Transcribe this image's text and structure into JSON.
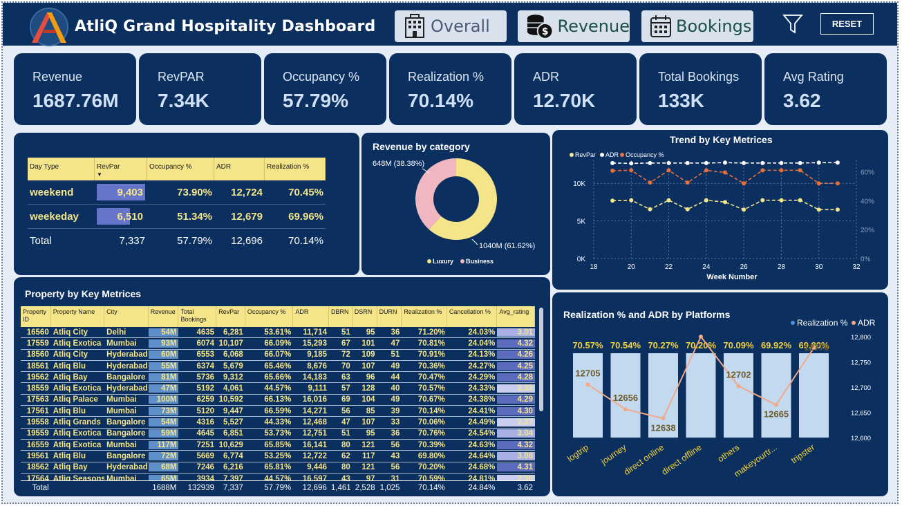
{
  "header": {
    "title": "AtliQ Grand Hospitality Dashboard",
    "nav": [
      {
        "label": "Overall",
        "color": "#4a5b7a",
        "icon": "hotel-icon"
      },
      {
        "label": "Revenue",
        "color": "#1c4f4a",
        "icon": "coins-icon"
      },
      {
        "label": "Bookings",
        "color": "#1c4f4a",
        "icon": "calendar-icon"
      }
    ],
    "reset_label": "RESET"
  },
  "kpis": [
    {
      "label": "Revenue",
      "value": "1687.76M"
    },
    {
      "label": "RevPAR",
      "value": "7.34K"
    },
    {
      "label": "Occupancy %",
      "value": "57.79%"
    },
    {
      "label": "Realization %",
      "value": "70.14%"
    },
    {
      "label": "ADR",
      "value": "12.70K"
    },
    {
      "label": "Total Bookings",
      "value": "133K"
    },
    {
      "label": "Avg Rating",
      "value": "3.62"
    }
  ],
  "day_type_table": {
    "headers": [
      "Day Type",
      "RevPar",
      "Occupancy %",
      "ADR",
      "Realization %"
    ],
    "rows": [
      {
        "day_type": "weekend",
        "revpar": "9,403",
        "revpar_value": 9403,
        "occupancy": "73.90%",
        "adr": "12,724",
        "realization": "70.45%"
      },
      {
        "day_type": "weekeday",
        "revpar": "6,510",
        "revpar_value": 6510,
        "occupancy": "51.34%",
        "adr": "12,679",
        "realization": "69.96%"
      }
    ],
    "total": {
      "day_type": "Total",
      "revpar": "7,337",
      "occupancy": "57.79%",
      "adr": "12,696",
      "realization": "70.14%"
    }
  },
  "revenue_by_category": {
    "title": "Revenue by category",
    "luxury_label": "1040M (61.62%)",
    "business_label": "648M (38.38%)",
    "legend": [
      "Luxury",
      "Business"
    ],
    "colors": {
      "Luxury": "#f4e58a",
      "Business": "#f0b7c0"
    }
  },
  "trend_chart": {
    "title": "Trend by Key Metrices",
    "xlabel": "Week Number",
    "legend": [
      "RevPar",
      "ADR",
      "Occupancy %"
    ],
    "colors": {
      "RevPar": "#f4e58a",
      "ADR": "#ffffff",
      "Occupancy %": "#e8703a"
    },
    "x_ticks": [
      "18",
      "20",
      "22",
      "24",
      "26",
      "28",
      "30",
      "32"
    ],
    "y_left_ticks": [
      "0K",
      "5K",
      "10K"
    ],
    "y_right_ticks": [
      "0%",
      "20%",
      "40%",
      "60%"
    ]
  },
  "property_table": {
    "title": "Property by Key Metrices",
    "headers": [
      "Property ID",
      "Property Name",
      "City",
      "Revenue",
      "Total Bookings",
      "RevPar",
      "Occupancy %",
      "ADR",
      "DBRN",
      "DSRN",
      "DURN",
      "Realization %",
      "Cancellation %",
      "Avg_rating"
    ],
    "rows": [
      [
        "16560",
        "Atliq City",
        "Delhi",
        "54M",
        "4635",
        "6,281",
        "53.61%",
        "11,714",
        "51",
        "95",
        "36",
        "71.20%",
        "24.03%",
        "3.01"
      ],
      [
        "17559",
        "Atliq Exotica",
        "Mumbai",
        "93M",
        "6074",
        "10,107",
        "66.09%",
        "15,293",
        "67",
        "101",
        "47",
        "70.81%",
        "24.04%",
        "4.32"
      ],
      [
        "18560",
        "Atliq City",
        "Hyderabad",
        "60M",
        "6553",
        "6,068",
        "66.07%",
        "9,185",
        "72",
        "109",
        "51",
        "70.91%",
        "24.13%",
        "4.26"
      ],
      [
        "18561",
        "Atliq Blu",
        "Hyderabad",
        "55M",
        "6374",
        "5,679",
        "65.46%",
        "8,676",
        "70",
        "107",
        "49",
        "70.36%",
        "24.27%",
        "4.25"
      ],
      [
        "19562",
        "Atliq Bay",
        "Bangalore",
        "81M",
        "5736",
        "9,312",
        "65.66%",
        "14,183",
        "63",
        "96",
        "44",
        "70.47%",
        "24.29%",
        "4.28"
      ],
      [
        "18559",
        "Atliq Exotica",
        "Hyderabad",
        "47M",
        "5192",
        "4,061",
        "44.57%",
        "9,111",
        "57",
        "128",
        "40",
        "70.57%",
        "24.33%",
        "2.33"
      ],
      [
        "17563",
        "Atliq Palace",
        "Mumbai",
        "100M",
        "6259",
        "10,592",
        "66.13%",
        "16,016",
        "69",
        "104",
        "49",
        "70.67%",
        "24.38%",
        "4.29"
      ],
      [
        "17561",
        "Atliq Blu",
        "Mumbai",
        "73M",
        "5120",
        "9,447",
        "66.59%",
        "14,271",
        "56",
        "85",
        "39",
        "70.14%",
        "24.41%",
        "4.30"
      ],
      [
        "19558",
        "Atliq Grands",
        "Bangalore",
        "54M",
        "4316",
        "5,527",
        "44.33%",
        "12,468",
        "47",
        "107",
        "33",
        "70.06%",
        "24.49%",
        "2.37"
      ],
      [
        "19559",
        "Atliq Exotica",
        "Bangalore",
        "59M",
        "4645",
        "6,851",
        "53.73%",
        "12,751",
        "51",
        "95",
        "36",
        "70.76%",
        "24.54%",
        "3.04"
      ],
      [
        "16559",
        "Atliq Exotica",
        "Mumbai",
        "117M",
        "7251",
        "10,629",
        "65.85%",
        "16,141",
        "80",
        "121",
        "56",
        "70.39%",
        "24.63%",
        "4.32"
      ],
      [
        "19561",
        "Atliq Blu",
        "Bangalore",
        "72M",
        "5669",
        "6,774",
        "53.25%",
        "12,722",
        "62",
        "117",
        "43",
        "69.80%",
        "24.64%",
        "3.08"
      ],
      [
        "18562",
        "Atliq Bay",
        "Hyderabad",
        "68M",
        "7246",
        "6,216",
        "65.81%",
        "9,446",
        "80",
        "121",
        "56",
        "70.20%",
        "24.68%",
        "4.31"
      ],
      [
        "17564",
        "Atliq Seasons",
        "Mumbai",
        "65M",
        "3934",
        "7,397",
        "44.57%",
        "16,597",
        "43",
        "97",
        "31",
        "70.59%",
        "24.81%",
        "2.30"
      ]
    ],
    "total": [
      "Total",
      "",
      "",
      "1688M",
      "132939",
      "7,337",
      "57.79%",
      "12,696",
      "1,461",
      "2,528",
      "1,025",
      "70.14%",
      "24.84%",
      "3.62"
    ]
  },
  "platform_chart": {
    "title": "Realization % and ADR by Platforms",
    "legend": [
      "Realization %",
      "ADR"
    ],
    "colors": {
      "Realization %": "#c3d9f0",
      "ADR": "#f2a98a"
    },
    "y_right_ticks": [
      "12,600",
      "12,650",
      "12,700",
      "12,750",
      "12,800"
    ]
  },
  "chart_data": [
    {
      "type": "pie",
      "title": "Revenue by category",
      "categories": [
        "Luxury",
        "Business"
      ],
      "values": [
        1040,
        648
      ],
      "percent": [
        61.62,
        38.38
      ],
      "unit": "M"
    },
    {
      "type": "line",
      "title": "Trend by Key Metrices",
      "xlabel": "Week Number",
      "x": [
        19,
        20,
        21,
        22,
        23,
        24,
        25,
        26,
        27,
        28,
        29,
        30,
        31
      ],
      "xlim": [
        18,
        32
      ],
      "ylim_left": [
        0,
        12500
      ],
      "ylim_right": [
        0,
        65
      ],
      "series": [
        {
          "name": "RevPar",
          "axis": "left",
          "values": [
            7700,
            7750,
            6550,
            7750,
            6550,
            7750,
            7500,
            6500,
            7750,
            7750,
            7750,
            6500,
            6500
          ]
        },
        {
          "name": "ADR",
          "axis": "left",
          "values": [
            12700,
            12650,
            12700,
            12700,
            12700,
            12700,
            12750,
            12700,
            12700,
            12700,
            12700,
            12750,
            12750
          ]
        },
        {
          "name": "Occupancy %",
          "axis": "right",
          "values": [
            60.7,
            61.0,
            52.5,
            61.0,
            52.5,
            61.0,
            59.5,
            52.0,
            61.0,
            61.0,
            61.0,
            52.0,
            52.0
          ]
        }
      ],
      "grid": true,
      "legend_position": "top-left"
    },
    {
      "type": "bar",
      "title": "Realization % and ADR by Platforms",
      "categories": [
        "logtrip",
        "journey",
        "direct online",
        "direct offline",
        "others",
        "makeyourtrip",
        "tripster"
      ],
      "series": [
        {
          "name": "Realization %",
          "type": "bar",
          "values": [
            70.57,
            70.54,
            70.27,
            70.2,
            70.09,
            69.92,
            69.8
          ],
          "labels": [
            "70.57%",
            "70.54%",
            "70.27%",
            "70.20%",
            "70.09%",
            "69.92%",
            "69.80%"
          ]
        },
        {
          "name": "ADR",
          "type": "line",
          "values": [
            12705,
            12656,
            12638,
            12800,
            12702,
            12665,
            12778
          ]
        }
      ],
      "category_labels": [
        "logtrip",
        "journey",
        "direct online",
        "direct offline",
        "others",
        "makeyourtr...",
        "tripster"
      ],
      "ylim_right": [
        12600,
        12800
      ],
      "legend_position": "top-right"
    }
  ]
}
